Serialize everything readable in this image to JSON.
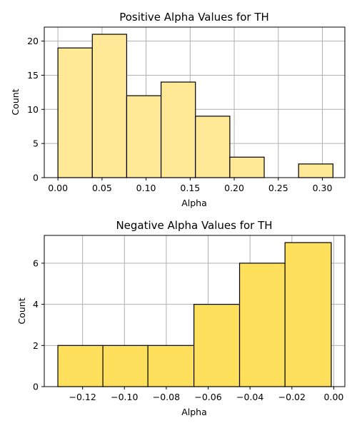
{
  "chart_data": [
    {
      "type": "bar",
      "title": "Positive Alpha Values for TH",
      "xlabel": "Alpha",
      "ylabel": "Count",
      "color": "#ffe896",
      "grid": true,
      "xlim": [
        -0.0155,
        0.3255
      ],
      "ylim": [
        0,
        22.05
      ],
      "bins": [
        {
          "start": 0.0,
          "end": 0.039,
          "count": 19
        },
        {
          "start": 0.039,
          "end": 0.078,
          "count": 21
        },
        {
          "start": 0.078,
          "end": 0.117,
          "count": 12
        },
        {
          "start": 0.117,
          "end": 0.156,
          "count": 14
        },
        {
          "start": 0.156,
          "end": 0.195,
          "count": 9
        },
        {
          "start": 0.195,
          "end": 0.234,
          "count": 3
        },
        {
          "start": 0.234,
          "end": 0.273,
          "count": 0
        },
        {
          "start": 0.273,
          "end": 0.312,
          "count": 2
        }
      ],
      "xticks": [
        0.0,
        0.05,
        0.1,
        0.15,
        0.2,
        0.25,
        0.3
      ],
      "xtick_labels": [
        "0.00",
        "0.05",
        "0.10",
        "0.15",
        "0.20",
        "0.25",
        "0.30"
      ],
      "yticks": [
        0,
        5,
        10,
        15,
        20
      ],
      "ytick_labels": [
        "0",
        "5",
        "10",
        "15",
        "20"
      ]
    },
    {
      "type": "bar",
      "title": "Negative Alpha Values for TH",
      "xlabel": "Alpha",
      "ylabel": "Count",
      "color": "#ffe05c",
      "grid": true,
      "xlim": [
        -0.1383,
        0.0053
      ],
      "ylim": [
        0,
        7.35
      ],
      "bins": [
        {
          "start": -0.1318,
          "end": -0.1103,
          "count": 2
        },
        {
          "start": -0.1103,
          "end": -0.0888,
          "count": 2
        },
        {
          "start": -0.0888,
          "end": -0.0668,
          "count": 2
        },
        {
          "start": -0.0668,
          "end": -0.045,
          "count": 4
        },
        {
          "start": -0.045,
          "end": -0.0233,
          "count": 6
        },
        {
          "start": -0.0233,
          "end": -0.0012,
          "count": 7
        }
      ],
      "xticks": [
        -0.12,
        -0.1,
        -0.08,
        -0.06,
        -0.04,
        -0.02,
        0.0
      ],
      "xtick_labels": [
        "−0.12",
        "−0.10",
        "−0.08",
        "−0.06",
        "−0.04",
        "−0.02",
        "0.00"
      ],
      "yticks": [
        0,
        2,
        4,
        6
      ],
      "ytick_labels": [
        "0",
        "2",
        "4",
        "6"
      ]
    }
  ]
}
